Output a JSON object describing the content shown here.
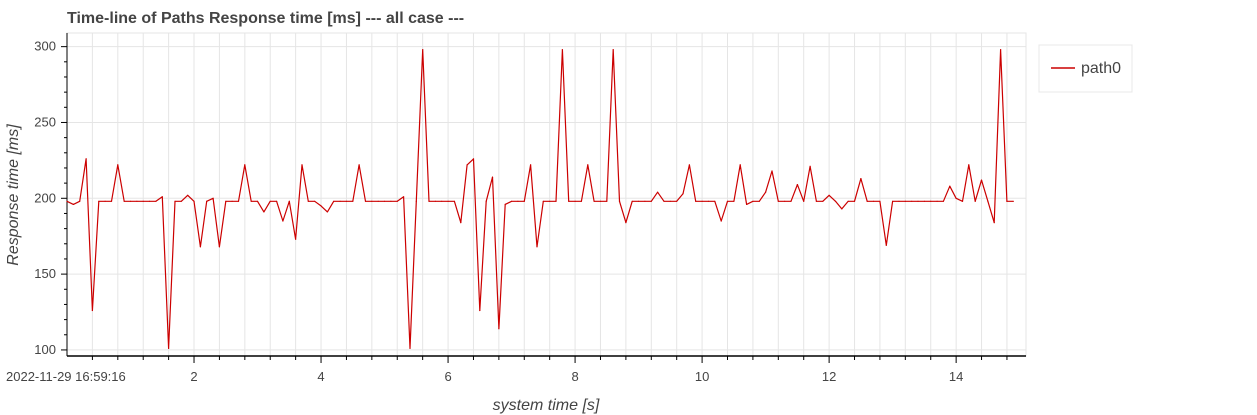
{
  "chart_data": {
    "type": "line",
    "title": "Time-line of Paths Response time [ms] --- all case ---",
    "xlabel": "system time [s]",
    "ylabel": "Response time [ms]",
    "x_origin_label": "2022-11-29 16:59:16",
    "x_ticks": [
      2,
      4,
      6,
      8,
      10,
      12,
      14
    ],
    "y_ticks": [
      100,
      150,
      200,
      250,
      300
    ],
    "xlim": [
      0.0,
      15.1
    ],
    "ylim": [
      96,
      309
    ],
    "grid": true,
    "legend_position": "outside-top-right",
    "colors": {
      "line": "#cc0000",
      "grid": "#e5e5e5",
      "axis": "#000000"
    },
    "series": [
      {
        "name": "path0",
        "x": [
          0.0,
          0.1,
          0.2,
          0.3,
          0.4,
          0.5,
          0.6,
          0.7,
          0.8,
          0.9,
          1.0,
          1.1,
          1.2,
          1.3,
          1.4,
          1.5,
          1.6,
          1.7,
          1.8,
          1.9,
          2.0,
          2.1,
          2.2,
          2.3,
          2.4,
          2.5,
          2.6,
          2.7,
          2.8,
          2.9,
          3.0,
          3.1,
          3.2,
          3.3,
          3.4,
          3.5,
          3.6,
          3.7,
          3.8,
          3.9,
          4.0,
          4.1,
          4.2,
          4.3,
          4.4,
          4.5,
          4.6,
          4.7,
          4.8,
          4.9,
          5.0,
          5.1,
          5.2,
          5.3,
          5.4,
          5.5,
          5.6,
          5.7,
          5.8,
          5.9,
          6.0,
          6.1,
          6.2,
          6.3,
          6.4,
          6.5,
          6.6,
          6.7,
          6.8,
          6.9,
          7.0,
          7.1,
          7.2,
          7.3,
          7.4,
          7.5,
          7.6,
          7.7,
          7.8,
          7.9,
          8.0,
          8.1,
          8.2,
          8.3,
          8.4,
          8.5,
          8.6,
          8.7,
          8.8,
          8.9,
          9.0,
          9.1,
          9.2,
          9.3,
          9.4,
          9.5,
          9.6,
          9.7,
          9.8,
          9.9,
          10.0,
          10.1,
          10.2,
          10.3,
          10.4,
          10.5,
          10.6,
          10.7,
          10.8,
          10.9,
          11.0,
          11.1,
          11.2,
          11.3,
          11.4,
          11.5,
          11.6,
          11.7,
          11.8,
          11.9,
          12.0,
          12.1,
          12.2,
          12.3,
          12.4,
          12.5,
          12.6,
          12.7,
          12.8,
          12.9,
          13.0,
          13.1,
          13.2,
          13.3,
          13.4,
          13.5,
          13.6,
          13.7,
          13.8,
          13.9,
          14.0,
          14.1,
          14.2,
          14.3,
          14.4,
          14.5,
          14.6,
          14.7,
          14.8,
          14.9
        ],
        "y": [
          198,
          196,
          198,
          226,
          126,
          198,
          198,
          198,
          222,
          198,
          198,
          198,
          198,
          198,
          198,
          201,
          101,
          198,
          198,
          202,
          198,
          168,
          198,
          200,
          168,
          198,
          198,
          198,
          222,
          198,
          198,
          191,
          198,
          198,
          185,
          198,
          173,
          222,
          198,
          198,
          195,
          191,
          198,
          198,
          198,
          198,
          222,
          198,
          198,
          198,
          198,
          198,
          198,
          201,
          101,
          198,
          298,
          198,
          198,
          198,
          198,
          198,
          184,
          222,
          226,
          126,
          198,
          214,
          114,
          196,
          198,
          198,
          198,
          222,
          168,
          198,
          198,
          198,
          298,
          198,
          198,
          198,
          222,
          198,
          198,
          198,
          298,
          198,
          184,
          198,
          198,
          198,
          198,
          204,
          198,
          198,
          198,
          203,
          222,
          198,
          198,
          198,
          198,
          185,
          198,
          198,
          222,
          196,
          198,
          198,
          204,
          218,
          198,
          198,
          198,
          209,
          198,
          221,
          198,
          198,
          202,
          198,
          193,
          198,
          198,
          213,
          198,
          198,
          198,
          169,
          198,
          198,
          198,
          198,
          198,
          198,
          198,
          198,
          198,
          208,
          200,
          198,
          222,
          198,
          212,
          198,
          184,
          298,
          198,
          198
        ]
      }
    ]
  }
}
